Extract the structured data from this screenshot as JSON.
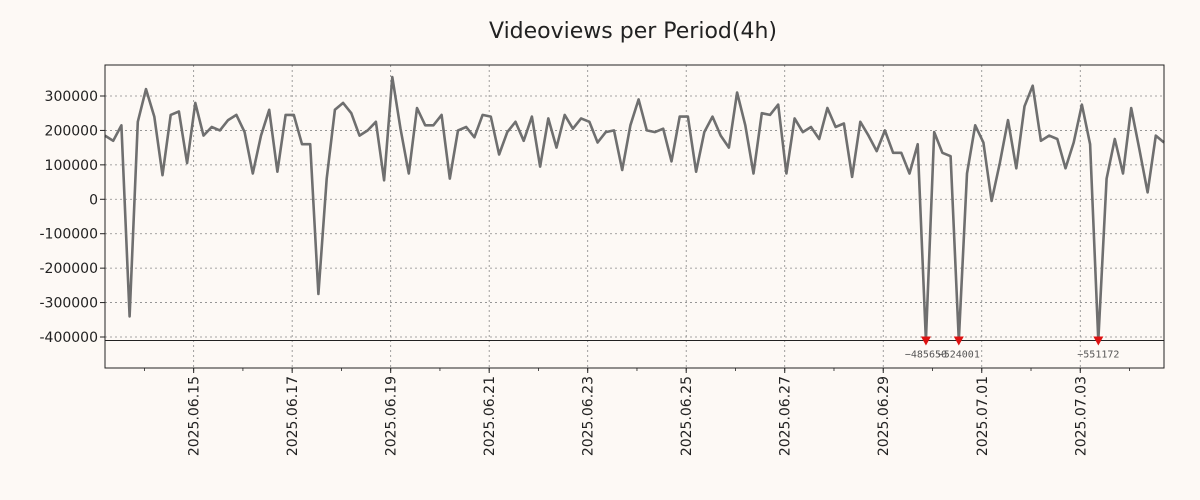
{
  "chart_data": {
    "type": "line",
    "title": "Videoviews per Period(4h)",
    "xlabel": "",
    "ylabel": "",
    "ylim": [
      -490000,
      390000
    ],
    "clip_floor": -410000,
    "grid": true,
    "y_ticks": [
      300000,
      200000,
      100000,
      0,
      -100000,
      -200000,
      -300000,
      -400000
    ],
    "x_ticks": [
      {
        "label": "2025.06.15",
        "day": 2
      },
      {
        "label": "2025.06.17",
        "day": 4
      },
      {
        "label": "2025.06.19",
        "day": 6
      },
      {
        "label": "2025.06.21",
        "day": 8
      },
      {
        "label": "2025.06.23",
        "day": 10
      },
      {
        "label": "2025.06.25",
        "day": 12
      },
      {
        "label": "2025.06.27",
        "day": 14
      },
      {
        "label": "2025.06.29",
        "day": 16
      },
      {
        "label": "2025.07.01",
        "day": 18
      },
      {
        "label": "2025.07.03",
        "day": 20
      }
    ],
    "x_range_days": [
      0.2,
      21.7
    ],
    "period_days": 0.16667,
    "series": [
      {
        "name": "Videoviews",
        "color": "#6f6f6f",
        "values": [
          185000,
          170000,
          215000,
          -340000,
          225000,
          320000,
          240000,
          70000,
          245000,
          255000,
          105000,
          280000,
          185000,
          210000,
          200000,
          230000,
          245000,
          195000,
          75000,
          185000,
          260000,
          80000,
          245000,
          245000,
          160000,
          160000,
          -275000,
          60000,
          260000,
          280000,
          250000,
          185000,
          200000,
          225000,
          55000,
          355000,
          205000,
          75000,
          265000,
          215000,
          215000,
          245000,
          60000,
          200000,
          210000,
          180000,
          245000,
          240000,
          130000,
          195000,
          225000,
          170000,
          240000,
          95000,
          235000,
          150000,
          245000,
          205000,
          235000,
          225000,
          165000,
          195000,
          200000,
          85000,
          215000,
          290000,
          200000,
          195000,
          205000,
          110000,
          240000,
          240000,
          80000,
          195000,
          240000,
          185000,
          150000,
          310000,
          215000,
          75000,
          250000,
          245000,
          275000,
          75000,
          235000,
          195000,
          210000,
          175000,
          265000,
          210000,
          220000,
          65000,
          225000,
          185000,
          140000,
          200000,
          135000,
          135000,
          75000,
          160000,
          -485650,
          195000,
          135000,
          125000,
          -524001,
          75000,
          215000,
          165000,
          -5000,
          105000,
          230000,
          90000,
          270000,
          330000,
          170000,
          185000,
          175000,
          90000,
          165000,
          275000,
          160000,
          -551172,
          60000,
          175000,
          75000,
          265000,
          145000,
          20000,
          185000,
          165000
        ]
      }
    ],
    "clipped_annotations": [
      {
        "index": 100,
        "label": "−485650"
      },
      {
        "index": 104,
        "label": "−524001"
      },
      {
        "index": 121,
        "label": "−551172"
      }
    ]
  }
}
